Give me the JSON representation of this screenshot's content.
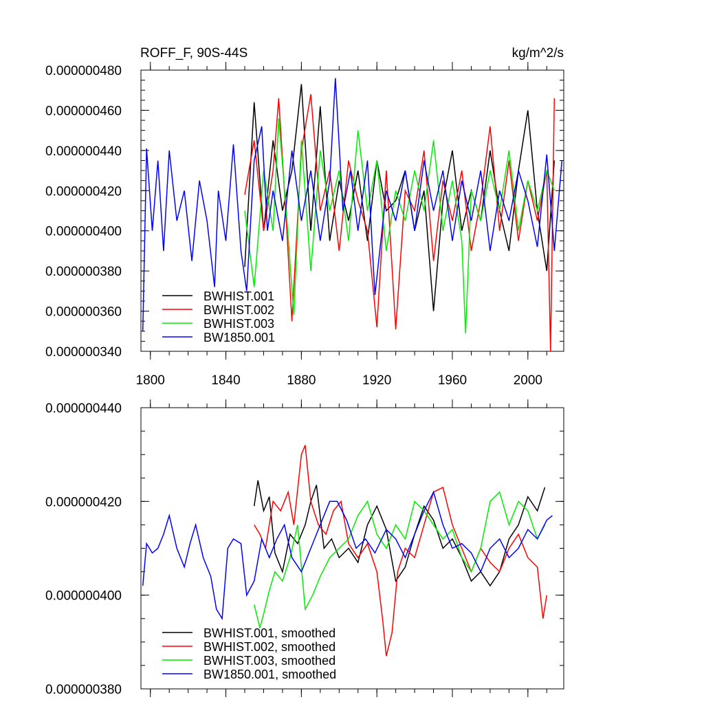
{
  "chart_data": [
    {
      "type": "line",
      "title_left": "ROFF_F, 90S-44S",
      "title_right": "kg/m^2/s",
      "xlim": [
        1795,
        2019
      ],
      "ylim": [
        3.4e-07,
        4.8e-07
      ],
      "xticks": [
        1800,
        1840,
        1880,
        1920,
        1960,
        2000
      ],
      "yticks": [
        3.4e-07,
        3.6e-07,
        3.8e-07,
        4e-07,
        4.2e-07,
        4.4e-07,
        4.6e-07,
        4.8e-07
      ],
      "ytick_labels": [
        "0.000000340",
        "0.000000360",
        "0.000000380",
        "0.000000400",
        "0.000000420",
        "0.000000440",
        "0.000000460",
        "0.000000480"
      ],
      "xtick_labels": [
        "1800",
        "1840",
        "1880",
        "1920",
        "1960",
        "2000"
      ],
      "legend": [
        "BWHIST.001",
        "BWHIST.002",
        "BWHIST.003",
        "BW1850.001"
      ],
      "series": [
        {
          "name": "BWHIST.001",
          "color": "#000000",
          "x": [
            1850,
            1855,
            1860,
            1865,
            1870,
            1875,
            1880,
            1885,
            1890,
            1895,
            1900,
            1905,
            1910,
            1915,
            1920,
            1925,
            1930,
            1935,
            1940,
            1945,
            1950,
            1955,
            1960,
            1965,
            1970,
            1975,
            1980,
            1985,
            1990,
            1995,
            2000,
            2005,
            2010,
            2014
          ],
          "values": [
            3.82e-07,
            4.64e-07,
            4e-07,
            4.45e-07,
            4.1e-07,
            4.3e-07,
            4.73e-07,
            4e-07,
            4.62e-07,
            3.95e-07,
            4.25e-07,
            4.05e-07,
            4.3e-07,
            3.95e-07,
            4.35e-07,
            4.1e-07,
            4.15e-07,
            4.3e-07,
            4e-07,
            4.2e-07,
            3.6e-07,
            4.15e-07,
            4.4e-07,
            4e-07,
            4.2e-07,
            4.05e-07,
            4.4e-07,
            4.1e-07,
            3.9e-07,
            4.3e-07,
            4.6e-07,
            4.1e-07,
            3.8e-07,
            4.35e-07
          ]
        },
        {
          "name": "BWHIST.002",
          "color": "#ff0000",
          "x": [
            1850,
            1855,
            1860,
            1865,
            1868,
            1872,
            1875,
            1880,
            1885,
            1890,
            1895,
            1900,
            1905,
            1910,
            1915,
            1920,
            1925,
            1930,
            1935,
            1940,
            1945,
            1950,
            1955,
            1960,
            1965,
            1970,
            1975,
            1980,
            1985,
            1990,
            1995,
            2000,
            2005,
            2010,
            2012,
            2014
          ],
          "values": [
            4.18e-07,
            4.45e-07,
            4e-07,
            4.3e-07,
            4.66e-07,
            4.05e-07,
            3.55e-07,
            4.4e-07,
            4.68e-07,
            4.1e-07,
            4.3e-07,
            3.9e-07,
            4.35e-07,
            4.15e-07,
            4e-07,
            3.52e-07,
            4.3e-07,
            3.51e-07,
            4.2e-07,
            4.1e-07,
            4.4e-07,
            3.85e-07,
            4.25e-07,
            4.05e-07,
            4.3e-07,
            3.9e-07,
            4.15e-07,
            4.52e-07,
            4e-07,
            4.35e-07,
            3.95e-07,
            4.25e-07,
            4.05e-07,
            4.3e-07,
            3.4e-07,
            4.66e-07
          ]
        },
        {
          "name": "BWHIST.003",
          "color": "#00ee00",
          "x": [
            1850,
            1855,
            1860,
            1865,
            1868,
            1872,
            1876,
            1880,
            1885,
            1890,
            1895,
            1900,
            1905,
            1910,
            1915,
            1920,
            1925,
            1930,
            1935,
            1940,
            1945,
            1950,
            1955,
            1960,
            1965,
            1967,
            1970,
            1975,
            1980,
            1985,
            1990,
            1995,
            2000,
            2005,
            2010,
            2014
          ],
          "values": [
            4.1e-07,
            3.72e-07,
            4.3e-07,
            4e-07,
            4.56e-07,
            4.1e-07,
            3.58e-07,
            4.45e-07,
            3.8e-07,
            4.4e-07,
            4.1e-07,
            4.3e-07,
            3.95e-07,
            4.5e-07,
            4.1e-07,
            4.35e-07,
            3.9e-07,
            4.2e-07,
            4.05e-07,
            4.3e-07,
            4.1e-07,
            4.45e-07,
            4e-07,
            4.25e-07,
            3.95e-07,
            3.49e-07,
            4.2e-07,
            4.05e-07,
            4.3e-07,
            4.1e-07,
            4.4e-07,
            4e-07,
            4.25e-07,
            4.1e-07,
            4.3e-07,
            4.2e-07
          ]
        },
        {
          "name": "BW1850.001",
          "color": "#0000ff",
          "x": [
            1796,
            1798,
            1801,
            1804,
            1807,
            1810,
            1814,
            1818,
            1822,
            1826,
            1830,
            1834,
            1836,
            1840,
            1844,
            1848,
            1851,
            1855,
            1859,
            1862,
            1865,
            1870,
            1875,
            1880,
            1885,
            1890,
            1895,
            1898,
            1902,
            1906,
            1910,
            1915,
            1919,
            1925,
            1930,
            1935,
            1940,
            1945,
            1950,
            1955,
            1960,
            1965,
            1970,
            1975,
            1980,
            1985,
            1990,
            1995,
            2000,
            2005,
            2010,
            2014,
            2018
          ],
          "values": [
            3.5e-07,
            4.41e-07,
            4e-07,
            4.35e-07,
            3.9e-07,
            4.4e-07,
            4.05e-07,
            4.2e-07,
            3.85e-07,
            4.25e-07,
            4.05e-07,
            3.72e-07,
            4.2e-07,
            3.95e-07,
            4.43e-07,
            3.9e-07,
            3.7e-07,
            4.35e-07,
            4.52e-07,
            4e-07,
            4.2e-07,
            3.95e-07,
            4.4e-07,
            4.05e-07,
            4.3e-07,
            3.95e-07,
            4.25e-07,
            4.76e-07,
            4.1e-07,
            4.3e-07,
            4e-07,
            4.35e-07,
            3.68e-07,
            4.2e-07,
            4.05e-07,
            4.3e-07,
            4e-07,
            4.35e-07,
            4.1e-07,
            4.3e-07,
            3.95e-07,
            4.25e-07,
            4.05e-07,
            4.3e-07,
            3.9e-07,
            4.2e-07,
            4.05e-07,
            4.3e-07,
            4.15e-07,
            3.92e-07,
            4.38e-07,
            3.9e-07,
            4.35e-07
          ]
        }
      ]
    },
    {
      "type": "line",
      "xlim": [
        1795,
        2019
      ],
      "ylim": [
        3.8e-07,
        4.4e-07
      ],
      "xticks": [
        1800,
        1840,
        1880,
        1920,
        1960,
        2000
      ],
      "yticks": [
        3.8e-07,
        4e-07,
        4.2e-07,
        4.4e-07
      ],
      "ytick_labels": [
        "0.000000380",
        "0.000000400",
        "0.000000420",
        "0.000000440"
      ],
      "legend": [
        "BWHIST.001, smoothed",
        "BWHIST.002, smoothed",
        "BWHIST.003, smoothed",
        "BW1850.001, smoothed"
      ],
      "series": [
        {
          "name": "BWHIST.001, smoothed",
          "color": "#000000",
          "x": [
            1855,
            1857,
            1860,
            1863,
            1866,
            1870,
            1874,
            1878,
            1882,
            1885,
            1888,
            1892,
            1896,
            1900,
            1905,
            1910,
            1915,
            1920,
            1925,
            1930,
            1935,
            1940,
            1945,
            1950,
            1955,
            1960,
            1965,
            1970,
            1975,
            1980,
            1985,
            1990,
            1995,
            2000,
            2005,
            2009
          ],
          "values": [
            4.19e-07,
            4.245e-07,
            4.18e-07,
            4.21e-07,
            4.09e-07,
            4.05e-07,
            4.13e-07,
            4.11e-07,
            4.15e-07,
            4.2e-07,
            4.235e-07,
            4.1e-07,
            4.12e-07,
            4.08e-07,
            4.1e-07,
            4.07e-07,
            4.15e-07,
            4.19e-07,
            4.14e-07,
            4.03e-07,
            4.06e-07,
            4.13e-07,
            4.19e-07,
            4.16e-07,
            4.1e-07,
            4.12e-07,
            4.08e-07,
            4.03e-07,
            4.05e-07,
            4.02e-07,
            4.05e-07,
            4.12e-07,
            4.15e-07,
            4.21e-07,
            4.18e-07,
            4.23e-07
          ]
        },
        {
          "name": "BWHIST.002, smoothed",
          "color": "#ff0000",
          "x": [
            1855,
            1858,
            1861,
            1865,
            1869,
            1873,
            1876,
            1880,
            1882,
            1885,
            1889,
            1893,
            1897,
            1901,
            1905,
            1910,
            1915,
            1920,
            1923,
            1925,
            1928,
            1931,
            1935,
            1940,
            1945,
            1950,
            1955,
            1960,
            1965,
            1970,
            1975,
            1980,
            1985,
            1990,
            1995,
            2000,
            2005,
            2008,
            2010
          ],
          "values": [
            4.15e-07,
            4.13e-07,
            4.1e-07,
            4.2e-07,
            4.18e-07,
            4.22e-07,
            4.15e-07,
            4.3e-07,
            4.32e-07,
            4.2e-07,
            4.15e-07,
            4.13e-07,
            4.18e-07,
            4.2e-07,
            4.11e-07,
            4.08e-07,
            4.11e-07,
            4.05e-07,
            3.95e-07,
            3.87e-07,
            3.92e-07,
            4.05e-07,
            4.1e-07,
            4.08e-07,
            4.15e-07,
            4.22e-07,
            4.23e-07,
            4.15e-07,
            4.1e-07,
            4.05e-07,
            4.1e-07,
            4.07e-07,
            4.05e-07,
            4.1e-07,
            4.13e-07,
            4.08e-07,
            4.06e-07,
            3.95e-07,
            4e-07
          ]
        },
        {
          "name": "BWHIST.003, smoothed",
          "color": "#00ee00",
          "x": [
            1855,
            1858,
            1860,
            1863,
            1866,
            1870,
            1874,
            1878,
            1882,
            1886,
            1890,
            1895,
            1900,
            1905,
            1910,
            1915,
            1920,
            1925,
            1930,
            1935,
            1940,
            1945,
            1950,
            1955,
            1960,
            1965,
            1970,
            1975,
            1980,
            1985,
            1990,
            1995,
            2000,
            2005,
            2009
          ],
          "values": [
            3.98e-07,
            3.93e-07,
            3.96e-07,
            4.01e-07,
            4.05e-07,
            4.03e-07,
            4.08e-07,
            4.15e-07,
            3.97e-07,
            4e-07,
            4.04e-07,
            4.08e-07,
            4.1e-07,
            4.12e-07,
            4.17e-07,
            4.2e-07,
            4.13e-07,
            4.1e-07,
            4.15e-07,
            4.12e-07,
            4.2e-07,
            4.18e-07,
            4.15e-07,
            4.12e-07,
            4.14e-07,
            4.08e-07,
            4.05e-07,
            4.1e-07,
            4.2e-07,
            4.22e-07,
            4.15e-07,
            4.2e-07,
            4.18e-07,
            4.12e-07,
            4.15e-07
          ]
        },
        {
          "name": "BW1850.001, smoothed",
          "color": "#0000ff",
          "x": [
            1796,
            1798,
            1801,
            1804,
            1807,
            1810,
            1814,
            1818,
            1821,
            1824,
            1828,
            1832,
            1835,
            1838,
            1841,
            1844,
            1848,
            1851,
            1855,
            1859,
            1863,
            1867,
            1871,
            1875,
            1880,
            1885,
            1890,
            1895,
            1899,
            1904,
            1909,
            1914,
            1919,
            1925,
            1930,
            1935,
            1940,
            1945,
            1950,
            1955,
            1960,
            1965,
            1970,
            1975,
            1980,
            1985,
            1990,
            1995,
            2000,
            2005,
            2010,
            2013
          ],
          "values": [
            4.02e-07,
            4.11e-07,
            4.09e-07,
            4.1e-07,
            4.13e-07,
            4.17e-07,
            4.1e-07,
            4.06e-07,
            4.11e-07,
            4.15e-07,
            4.08e-07,
            4.04e-07,
            3.97e-07,
            3.95e-07,
            4.1e-07,
            4.12e-07,
            4.11e-07,
            4e-07,
            4.03e-07,
            4.12e-07,
            4.08e-07,
            4.12e-07,
            4.15e-07,
            4.08e-07,
            4.05e-07,
            4.1e-07,
            4.15e-07,
            4.2e-07,
            4.2e-07,
            4.16e-07,
            4.1e-07,
            4.12e-07,
            4.09e-07,
            4.14e-07,
            4.12e-07,
            4.08e-07,
            4.13e-07,
            4.18e-07,
            4.22e-07,
            4.15e-07,
            4.1e-07,
            4.11e-07,
            4.09e-07,
            4.05e-07,
            4.1e-07,
            4.12e-07,
            4.08e-07,
            4.1e-07,
            4.14e-07,
            4.12e-07,
            4.16e-07,
            4.17e-07
          ]
        }
      ]
    }
  ]
}
